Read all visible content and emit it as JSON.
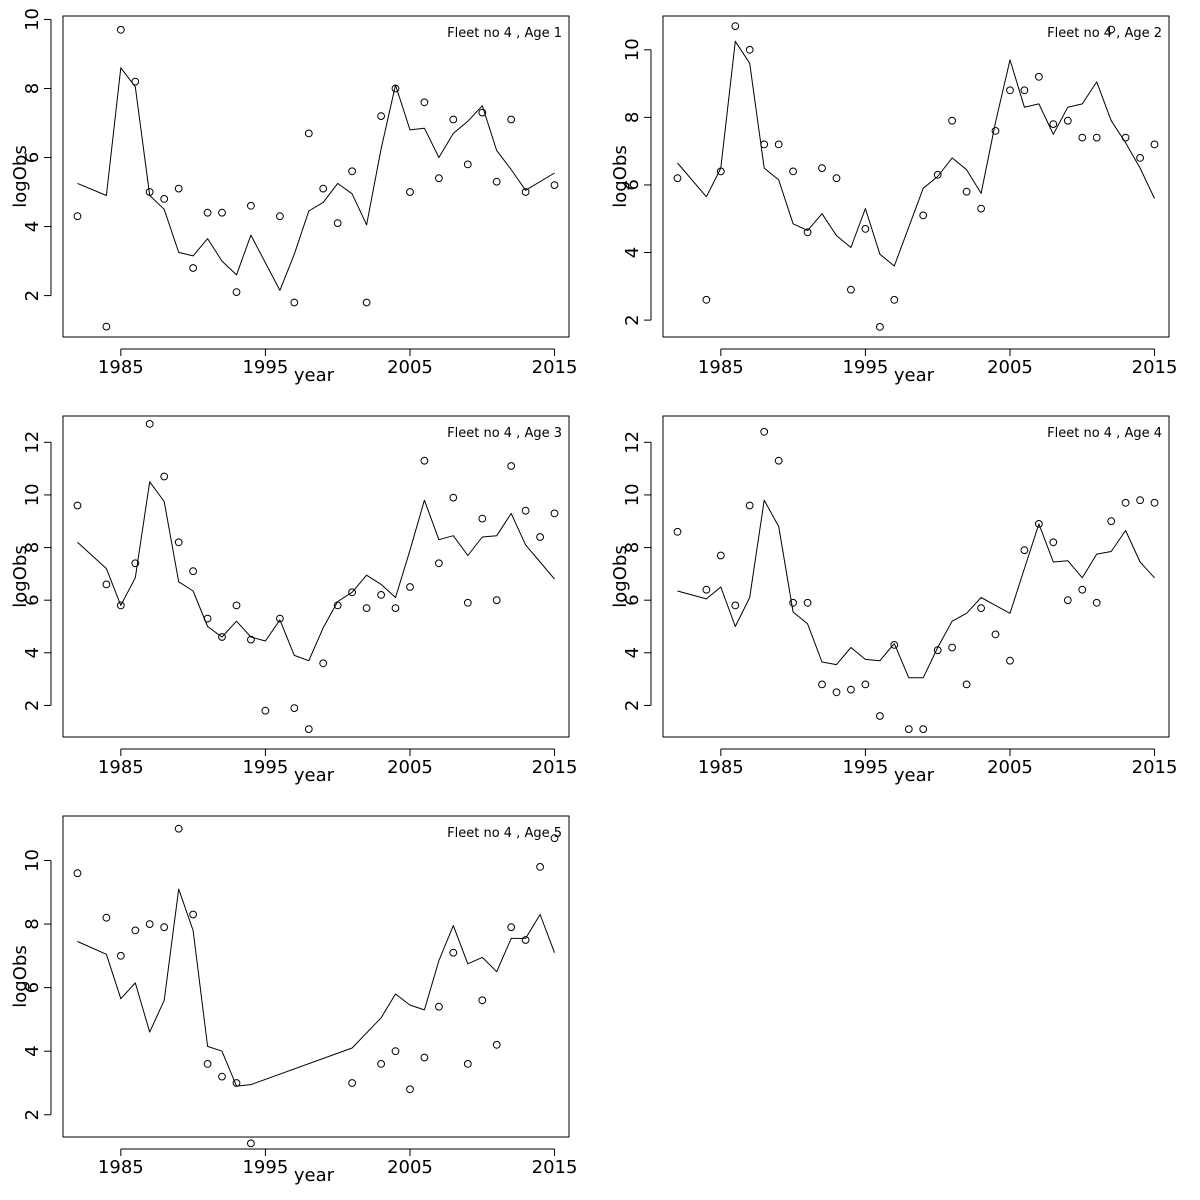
{
  "chart_data": [
    {
      "type": "line",
      "title": "Fleet no 4 , Age 1",
      "xlabel": "year",
      "ylabel": "logObs",
      "xlim": [
        1981,
        2016
      ],
      "ylim": [
        0.8,
        10.1
      ],
      "xticks": [
        "1985",
        "1995",
        "2005",
        "2015"
      ],
      "yticks": [
        "2",
        "4",
        "6",
        "8",
        "10"
      ],
      "grid": false,
      "series": [
        {
          "style": "points",
          "x": [
            1982,
            1984,
            1985,
            1986,
            1987,
            1988,
            1989,
            1990,
            1991,
            1992,
            1993,
            1994,
            1996,
            1997,
            1998,
            1999,
            2000,
            2001,
            2002,
            2003,
            2004,
            2005,
            2006,
            2007,
            2008,
            2009,
            2010,
            2011,
            2012,
            2013,
            2015
          ],
          "y": [
            4.3,
            1.1,
            9.7,
            8.2,
            5.0,
            4.8,
            5.1,
            2.8,
            4.4,
            4.4,
            2.1,
            4.6,
            4.3,
            1.8,
            6.7,
            5.1,
            4.1,
            5.6,
            1.8,
            7.2,
            8.0,
            5.0,
            7.6,
            5.4,
            7.1,
            5.8,
            7.3,
            5.3,
            7.1,
            5.0,
            5.2
          ]
        },
        {
          "style": "line",
          "x": [
            1982,
            1984,
            1985,
            1986,
            1987,
            1988,
            1989,
            1990,
            1991,
            1992,
            1993,
            1994,
            1996,
            1997,
            1998,
            1999,
            2000,
            2001,
            2002,
            2003,
            2004,
            2005,
            2006,
            2007,
            2008,
            2009,
            2010,
            2011,
            2012,
            2013,
            2015
          ],
          "y": [
            5.25,
            4.9,
            8.6,
            8.05,
            4.9,
            4.5,
            3.25,
            3.15,
            3.65,
            3.0,
            2.6,
            3.75,
            2.15,
            3.2,
            4.45,
            4.7,
            5.25,
            4.95,
            4.05,
            6.25,
            8.1,
            6.8,
            6.85,
            6.0,
            6.7,
            7.05,
            7.5,
            6.2,
            5.65,
            5.05,
            5.55
          ]
        }
      ]
    },
    {
      "type": "line",
      "title": "Fleet no 4 , Age 2",
      "xlabel": "year",
      "ylabel": "logObs",
      "xlim": [
        1981,
        2016
      ],
      "ylim": [
        1.5,
        11.0
      ],
      "xticks": [
        "1985",
        "1995",
        "2005",
        "2015"
      ],
      "yticks": [
        "2",
        "4",
        "6",
        "8",
        "10"
      ],
      "grid": false,
      "series": [
        {
          "style": "points",
          "x": [
            1982,
            1984,
            1985,
            1986,
            1987,
            1988,
            1989,
            1990,
            1991,
            1992,
            1993,
            1994,
            1995,
            1996,
            1997,
            1999,
            2000,
            2001,
            2002,
            2003,
            2004,
            2005,
            2006,
            2007,
            2008,
            2009,
            2010,
            2011,
            2012,
            2013,
            2014,
            2015
          ],
          "y": [
            6.2,
            2.6,
            6.4,
            10.7,
            10.0,
            7.2,
            7.2,
            6.4,
            4.6,
            6.5,
            6.2,
            2.9,
            4.7,
            1.8,
            2.6,
            5.1,
            6.3,
            7.9,
            5.8,
            5.3,
            7.6,
            8.8,
            8.8,
            9.2,
            7.8,
            7.9,
            7.4,
            7.4,
            10.6,
            7.4,
            6.8,
            7.2
          ]
        },
        {
          "style": "line",
          "x": [
            1982,
            1984,
            1985,
            1986,
            1987,
            1988,
            1989,
            1990,
            1991,
            1992,
            1993,
            1994,
            1995,
            1996,
            1997,
            1999,
            2000,
            2001,
            2002,
            2003,
            2004,
            2005,
            2006,
            2007,
            2008,
            2009,
            2010,
            2011,
            2012,
            2013,
            2014,
            2015
          ],
          "y": [
            6.65,
            5.65,
            6.5,
            10.25,
            9.6,
            6.5,
            6.15,
            4.85,
            4.65,
            5.15,
            4.5,
            4.15,
            5.3,
            3.95,
            3.6,
            5.9,
            6.25,
            6.8,
            6.45,
            5.75,
            7.85,
            9.7,
            8.3,
            8.4,
            7.5,
            8.3,
            8.4,
            9.05,
            7.9,
            7.25,
            6.5,
            5.6
          ]
        }
      ]
    },
    {
      "type": "line",
      "title": "Fleet no 4 , Age 3",
      "xlabel": "year",
      "ylabel": "logObs",
      "xlim": [
        1981,
        2016
      ],
      "ylim": [
        0.8,
        13.0
      ],
      "xticks": [
        "1985",
        "1995",
        "2005",
        "2015"
      ],
      "yticks": [
        "2",
        "4",
        "6",
        "8",
        "10",
        "12"
      ],
      "grid": false,
      "series": [
        {
          "style": "points",
          "x": [
            1982,
            1984,
            1985,
            1986,
            1987,
            1988,
            1989,
            1990,
            1991,
            1992,
            1993,
            1994,
            1995,
            1996,
            1997,
            1998,
            1999,
            2000,
            2001,
            2002,
            2003,
            2004,
            2005,
            2006,
            2007,
            2008,
            2009,
            2010,
            2011,
            2012,
            2013,
            2014,
            2015
          ],
          "y": [
            9.6,
            6.6,
            5.8,
            7.4,
            12.7,
            10.7,
            8.2,
            7.1,
            5.3,
            4.6,
            5.8,
            4.5,
            1.8,
            5.3,
            1.9,
            1.1,
            3.6,
            5.8,
            6.3,
            5.7,
            6.2,
            5.7,
            6.5,
            11.3,
            7.4,
            9.9,
            5.9,
            9.1,
            6.0,
            11.1,
            9.4,
            8.4,
            9.3
          ]
        },
        {
          "style": "line",
          "x": [
            1982,
            1984,
            1985,
            1986,
            1987,
            1988,
            1989,
            1990,
            1991,
            1992,
            1993,
            1994,
            1995,
            1996,
            1997,
            1998,
            1999,
            2000,
            2001,
            2002,
            2003,
            2004,
            2005,
            2006,
            2007,
            2008,
            2009,
            2010,
            2011,
            2012,
            2013,
            2014,
            2015
          ],
          "y": [
            8.2,
            7.2,
            5.8,
            6.85,
            10.5,
            9.75,
            6.7,
            6.35,
            5.0,
            4.6,
            5.2,
            4.6,
            4.45,
            5.25,
            3.9,
            3.7,
            4.95,
            5.95,
            6.3,
            6.95,
            6.6,
            6.1,
            7.9,
            9.8,
            8.3,
            8.45,
            7.7,
            8.4,
            8.45,
            9.3,
            8.1,
            7.45,
            6.8
          ]
        }
      ]
    },
    {
      "type": "line",
      "title": "Fleet no 4 , Age 4",
      "xlabel": "year",
      "ylabel": "logObs",
      "xlim": [
        1981,
        2016
      ],
      "ylim": [
        0.8,
        13.0
      ],
      "xticks": [
        "1985",
        "1995",
        "2005",
        "2015"
      ],
      "yticks": [
        "2",
        "4",
        "6",
        "8",
        "10",
        "12"
      ],
      "grid": false,
      "series": [
        {
          "style": "points",
          "x": [
            1982,
            1984,
            1985,
            1986,
            1987,
            1988,
            1989,
            1990,
            1991,
            1992,
            1993,
            1994,
            1995,
            1996,
            1997,
            1998,
            1999,
            2000,
            2001,
            2002,
            2003,
            2004,
            2005,
            2006,
            2007,
            2008,
            2009,
            2010,
            2011,
            2012,
            2013,
            2014,
            2015
          ],
          "y": [
            8.6,
            6.4,
            7.7,
            5.8,
            9.6,
            12.4,
            11.3,
            5.9,
            5.9,
            2.8,
            2.5,
            2.6,
            2.8,
            1.6,
            4.3,
            1.1,
            1.1,
            4.1,
            4.2,
            2.8,
            5.7,
            4.7,
            3.7,
            7.9,
            8.9,
            8.2,
            6.0,
            6.4,
            5.9,
            9.0,
            9.7,
            9.8,
            9.7
          ]
        },
        {
          "style": "line",
          "x": [
            1982,
            1984,
            1985,
            1986,
            1987,
            1988,
            1989,
            1990,
            1991,
            1992,
            1993,
            1994,
            1995,
            1996,
            1997,
            1998,
            1999,
            2000,
            2001,
            2002,
            2003,
            2004,
            2005,
            2006,
            2007,
            2008,
            2009,
            2010,
            2011,
            2012,
            2013,
            2014,
            2015
          ],
          "y": [
            6.35,
            6.05,
            6.5,
            5.0,
            6.1,
            9.8,
            8.8,
            5.55,
            5.1,
            3.65,
            3.55,
            4.2,
            3.75,
            3.7,
            4.35,
            3.05,
            3.05,
            4.2,
            5.2,
            5.5,
            6.1,
            5.8,
            5.5,
            7.2,
            8.9,
            7.45,
            7.5,
            6.85,
            7.75,
            7.85,
            8.65,
            7.45,
            6.85
          ]
        }
      ]
    },
    {
      "type": "line",
      "title": "Fleet no 4 , Age 5",
      "xlabel": "year",
      "ylabel": "logObs",
      "xlim": [
        1981,
        2016
      ],
      "ylim": [
        1.3,
        11.4
      ],
      "xticks": [
        "1985",
        "1995",
        "2005",
        "2015"
      ],
      "yticks": [
        "2",
        "4",
        "6",
        "8",
        "10"
      ],
      "grid": false,
      "series": [
        {
          "style": "points",
          "x": [
            1982,
            1984,
            1985,
            1986,
            1987,
            1988,
            1989,
            1990,
            1991,
            1992,
            1993,
            1994,
            2001,
            2003,
            2004,
            2005,
            2006,
            2007,
            2008,
            2009,
            2010,
            2011,
            2012,
            2013,
            2014,
            2015
          ],
          "y": [
            9.6,
            8.2,
            7.0,
            7.8,
            8.0,
            7.9,
            11.0,
            8.3,
            3.6,
            3.2,
            3.0,
            1.1,
            3.0,
            3.6,
            4.0,
            2.8,
            3.8,
            5.4,
            7.1,
            3.6,
            5.6,
            4.2,
            7.9,
            7.5,
            9.8,
            10.7
          ]
        },
        {
          "style": "line",
          "x": [
            1982,
            1984,
            1985,
            1986,
            1987,
            1988,
            1989,
            1990,
            1991,
            1992,
            1993,
            1994,
            2001,
            2003,
            2004,
            2005,
            2006,
            2007,
            2008,
            2009,
            2010,
            2011,
            2012,
            2013,
            2014,
            2015
          ],
          "y": [
            7.45,
            7.05,
            5.65,
            6.15,
            4.6,
            5.6,
            9.1,
            7.8,
            4.15,
            4.0,
            2.9,
            2.95,
            4.1,
            5.05,
            5.8,
            5.45,
            5.3,
            6.85,
            7.95,
            6.75,
            6.95,
            6.5,
            7.55,
            7.55,
            8.3,
            7.1
          ]
        }
      ]
    }
  ]
}
